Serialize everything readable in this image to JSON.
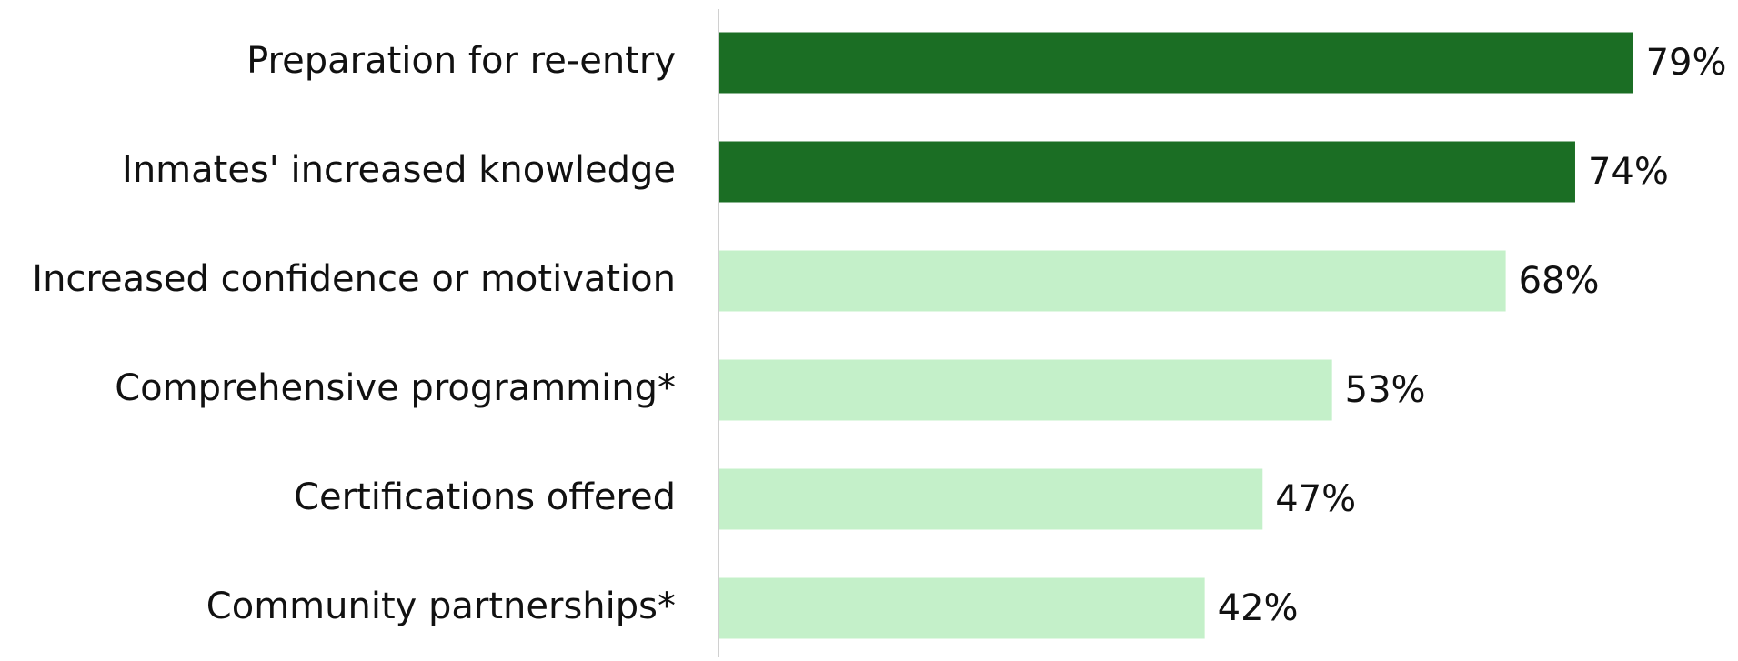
{
  "chart_data": {
    "type": "hbar",
    "categories": [
      "Preparation for re-entry",
      "Inmates' increased knowledge",
      "Increased confidence or motivation",
      "Comprehensive programming*",
      "Certifications offered",
      "Community partnerships*"
    ],
    "values": [
      79,
      74,
      68,
      53,
      47,
      42
    ],
    "value_labels": [
      "79%",
      "74%",
      "68%",
      "53%",
      "47%",
      "42%"
    ],
    "colors": [
      "#1b6e24",
      "#1b6e24",
      "#c4f0c9",
      "#c4f0c9",
      "#c4f0c9",
      "#c4f0c9"
    ],
    "xlim": [
      0,
      85
    ],
    "grid": false
  }
}
